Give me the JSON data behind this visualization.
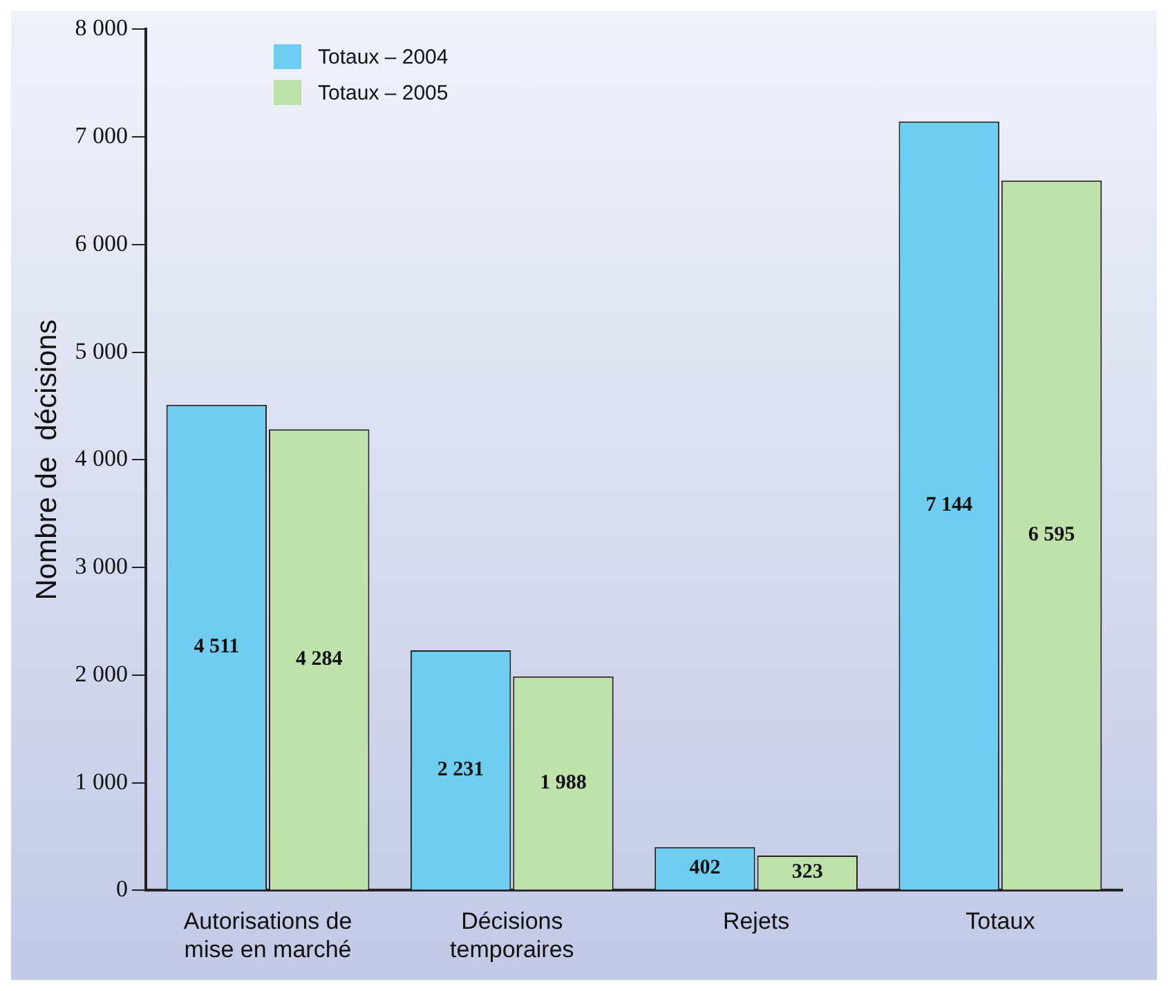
{
  "chart_data": {
    "type": "bar",
    "ylabel": "Nombre de  décisions",
    "categories": [
      "Autorisations de\nmise en marché",
      "Décisions\ntemporaires",
      "Rejets",
      "Totaux"
    ],
    "series": [
      {
        "name": "Totaux – 2004",
        "color": "#6fcdf0",
        "values": [
          4511,
          2231,
          402,
          7144
        ],
        "value_labels": [
          "4 511",
          "2 231",
          "402",
          "7 144"
        ]
      },
      {
        "name": "Totaux – 2005",
        "color": "#bfe2ab",
        "values": [
          4284,
          1988,
          323,
          6595
        ],
        "value_labels": [
          "4 284",
          "1 988",
          "323",
          "6 595"
        ]
      }
    ],
    "ylim": [
      0,
      8000
    ],
    "yticks": [
      0,
      {
        "value": 1000,
        "label": "1 000"
      },
      {
        "value": 2000,
        "label": "2 000"
      },
      {
        "value": 3000,
        "label": "3 000"
      },
      {
        "value": 4000,
        "label": "4 000"
      },
      {
        "value": 5000,
        "label": "5 000"
      },
      {
        "value": 6000,
        "label": "6 000"
      },
      {
        "value": 7000,
        "label": "7 000"
      },
      {
        "value": 8000,
        "label": "8 000"
      }
    ],
    "grid": false,
    "legend": "top left"
  }
}
